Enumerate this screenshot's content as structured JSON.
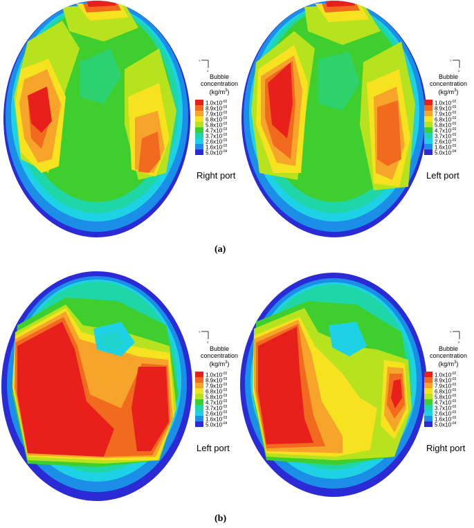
{
  "legend": {
    "title_line1": "Bubble",
    "title_line2": "concentration",
    "unit_base": "(kg/m",
    "unit_exp": "3",
    "unit_close": ")",
    "levels": [
      {
        "mant": "1.0x10",
        "exp": "-02",
        "color": "#e8201c"
      },
      {
        "mant": "8.9x10",
        "exp": "-03",
        "color": "#f26a1e"
      },
      {
        "mant": "7.9x10",
        "exp": "-03",
        "color": "#f7a52a"
      },
      {
        "mant": "6.8x10",
        "exp": "-03",
        "color": "#f6e21e"
      },
      {
        "mant": "5.8x10",
        "exp": "-03",
        "color": "#b6e31e"
      },
      {
        "mant": "4.7x10",
        "exp": "-03",
        "color": "#3ecf2e"
      },
      {
        "mant": "3.7x10",
        "exp": "-03",
        "color": "#1ed6a6"
      },
      {
        "mant": "2.6x10",
        "exp": "-03",
        "color": "#1ed2e6"
      },
      {
        "mant": "1.6x10",
        "exp": "-03",
        "color": "#1b8ee8"
      },
      {
        "mant": "5.0x10",
        "exp": "-04",
        "color": "#2a2ad6"
      }
    ]
  },
  "axis": {
    "y_label": "Y",
    "z_label": "Z"
  },
  "panels": {
    "a_left": {
      "port_label": "Right port"
    },
    "a_right": {
      "port_label": "Left port"
    },
    "b_left": {
      "port_label": "Left port"
    },
    "b_right": {
      "port_label": "Right port"
    }
  },
  "captions": {
    "a": "(a)",
    "b": "(b)"
  }
}
